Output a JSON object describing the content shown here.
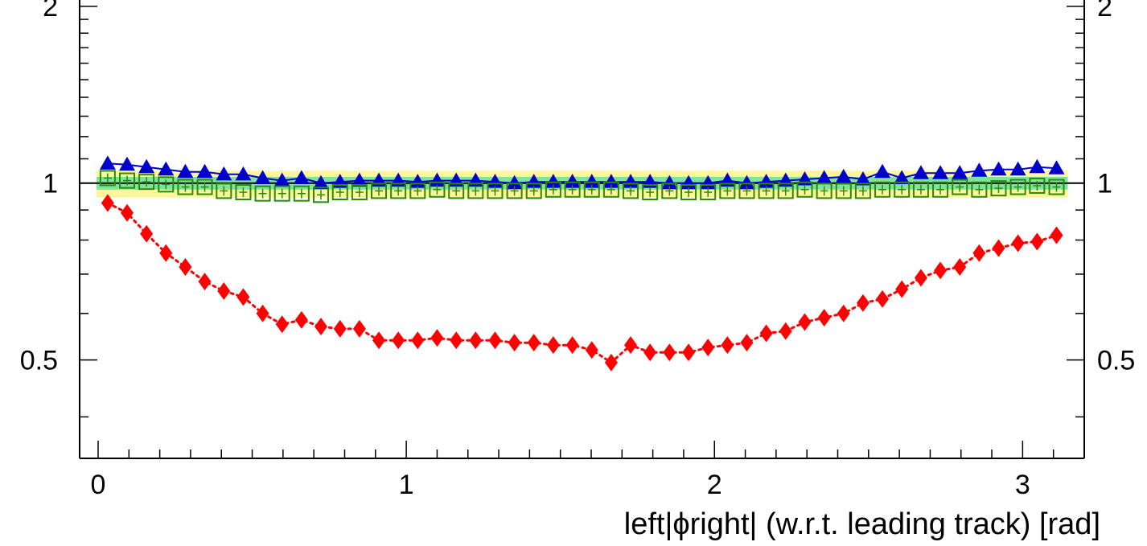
{
  "chart_data": {
    "type": "scatter",
    "xlabel": "left|ϕright| (w.r.t. leading track) [rad]",
    "ylabel": "",
    "xlim": [
      -0.06,
      3.2
    ],
    "ylim": [
      0.34,
      2.05
    ],
    "y_scale": "log",
    "x_ticks": [
      0,
      1,
      2,
      3
    ],
    "x_tick_labels": [
      "0",
      "1",
      "2",
      "3"
    ],
    "y_ticks": [
      0.5,
      1,
      2
    ],
    "y_tick_labels": [
      "0.5",
      "1",
      "2"
    ],
    "reference_line": 1,
    "bands": [
      {
        "color": "#fff59d",
        "y_low": 0.945,
        "y_high": 1.05
      },
      {
        "color": "#7fe3a0",
        "y_low": 0.975,
        "y_high": 1.025
      }
    ],
    "series": [
      {
        "color": "#0000cc",
        "marker": "triangle",
        "connect": "solid",
        "x": [
          0.031,
          0.094,
          0.157,
          0.22,
          0.283,
          0.346,
          0.408,
          0.471,
          0.534,
          0.597,
          0.66,
          0.723,
          0.785,
          0.848,
          0.911,
          0.974,
          1.037,
          1.1,
          1.162,
          1.225,
          1.288,
          1.351,
          1.414,
          1.477,
          1.539,
          1.602,
          1.665,
          1.728,
          1.791,
          1.854,
          1.916,
          1.979,
          2.042,
          2.105,
          2.168,
          2.231,
          2.293,
          2.356,
          2.419,
          2.482,
          2.545,
          2.608,
          2.67,
          2.733,
          2.796,
          2.859,
          2.922,
          2.985,
          3.047,
          3.11
        ],
        "y": [
          1.08,
          1.075,
          1.065,
          1.055,
          1.045,
          1.045,
          1.035,
          1.035,
          1.02,
          1.01,
          1.02,
          1.0,
          1.005,
          1.01,
          1.01,
          1.01,
          1.005,
          1.01,
          1.01,
          1.01,
          1.005,
          1.0,
          1.005,
          1.005,
          1.005,
          1.005,
          1.005,
          1.005,
          1.005,
          1.0,
          1.0,
          1.0,
          1.01,
          1.0,
          1.005,
          1.01,
          1.015,
          1.02,
          1.025,
          1.015,
          1.045,
          1.02,
          1.04,
          1.04,
          1.04,
          1.05,
          1.055,
          1.055,
          1.065,
          1.06
        ]
      },
      {
        "color": "#2a8c00",
        "marker": "open-square",
        "connect": "none",
        "x": [
          0.031,
          0.094,
          0.157,
          0.22,
          0.283,
          0.346,
          0.408,
          0.471,
          0.534,
          0.597,
          0.66,
          0.723,
          0.785,
          0.848,
          0.911,
          0.974,
          1.037,
          1.1,
          1.162,
          1.225,
          1.288,
          1.351,
          1.414,
          1.477,
          1.539,
          1.602,
          1.665,
          1.728,
          1.791,
          1.854,
          1.916,
          1.979,
          2.042,
          2.105,
          2.168,
          2.231,
          2.293,
          2.356,
          2.419,
          2.482,
          2.545,
          2.608,
          2.67,
          2.733,
          2.796,
          2.859,
          2.922,
          2.985,
          3.047,
          3.11
        ],
        "y": [
          1.02,
          1.01,
          1.005,
          0.995,
          0.985,
          0.985,
          0.97,
          0.965,
          0.96,
          0.96,
          0.96,
          0.955,
          0.965,
          0.965,
          0.97,
          0.97,
          0.97,
          0.975,
          0.97,
          0.97,
          0.97,
          0.97,
          0.97,
          0.975,
          0.975,
          0.975,
          0.975,
          0.97,
          0.965,
          0.97,
          0.965,
          0.965,
          0.97,
          0.97,
          0.97,
          0.97,
          0.975,
          0.97,
          0.97,
          0.97,
          0.975,
          0.975,
          0.975,
          0.975,
          0.985,
          0.975,
          0.98,
          0.985,
          0.99,
          0.985
        ]
      },
      {
        "color": "#ff0000",
        "marker": "diamond",
        "connect": "dotted",
        "x": [
          0.031,
          0.094,
          0.157,
          0.22,
          0.283,
          0.346,
          0.408,
          0.471,
          0.534,
          0.597,
          0.66,
          0.723,
          0.785,
          0.848,
          0.911,
          0.974,
          1.037,
          1.1,
          1.162,
          1.225,
          1.288,
          1.351,
          1.414,
          1.477,
          1.539,
          1.602,
          1.665,
          1.728,
          1.791,
          1.854,
          1.916,
          1.979,
          2.042,
          2.105,
          2.168,
          2.231,
          2.293,
          2.356,
          2.419,
          2.482,
          2.545,
          2.608,
          2.67,
          2.733,
          2.796,
          2.859,
          2.922,
          2.985,
          3.047,
          3.11
        ],
        "y": [
          0.925,
          0.89,
          0.82,
          0.76,
          0.72,
          0.68,
          0.655,
          0.64,
          0.6,
          0.575,
          0.585,
          0.57,
          0.565,
          0.565,
          0.54,
          0.54,
          0.54,
          0.545,
          0.54,
          0.54,
          0.54,
          0.535,
          0.535,
          0.53,
          0.53,
          0.52,
          0.495,
          0.53,
          0.515,
          0.515,
          0.515,
          0.525,
          0.53,
          0.535,
          0.555,
          0.56,
          0.58,
          0.59,
          0.6,
          0.625,
          0.635,
          0.66,
          0.69,
          0.71,
          0.72,
          0.76,
          0.775,
          0.79,
          0.795,
          0.815
        ]
      }
    ]
  }
}
